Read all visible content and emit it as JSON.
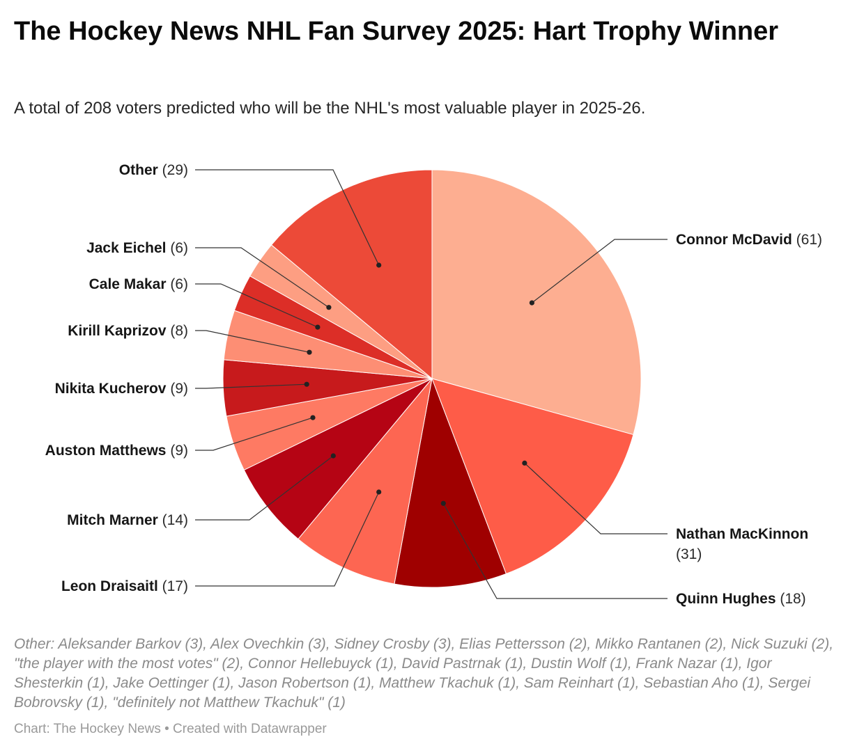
{
  "header": {
    "title": "The Hockey News NHL Fan Survey 2025: Hart Trophy Winner",
    "subtitle": "A total of 208 voters predicted who will be the NHL's most valuable player in 2025-26."
  },
  "chart_data": {
    "type": "pie",
    "title": "The Hockey News NHL Fan Survey 2025: Hart Trophy Winner",
    "total": 208,
    "slices": [
      {
        "name": "Connor McDavid",
        "value": 61,
        "count_label": "(61)",
        "color": "#fdae91"
      },
      {
        "name": "Nathan MacKinnon",
        "value": 31,
        "count_label": "(31)",
        "color": "#fe5c48"
      },
      {
        "name": "Quinn Hughes",
        "value": 18,
        "count_label": "(18)",
        "color": "#9f0000"
      },
      {
        "name": "Leon Draisaitl",
        "value": 17,
        "count_label": "(17)",
        "color": "#fd6652"
      },
      {
        "name": "Mitch Marner",
        "value": 14,
        "count_label": "(14)",
        "color": "#b50414"
      },
      {
        "name": "Auston Matthews",
        "value": 9,
        "count_label": "(9)",
        "color": "#fe7a63"
      },
      {
        "name": "Nikita Kucherov",
        "value": 9,
        "count_label": "(9)",
        "color": "#c71a1c"
      },
      {
        "name": "Kirill Kaprizov",
        "value": 8,
        "count_label": "(8)",
        "color": "#fd8e74"
      },
      {
        "name": "Cale Makar",
        "value": 6,
        "count_label": "(6)",
        "color": "#dc2e27"
      },
      {
        "name": "Jack Eichel",
        "value": 6,
        "count_label": "(6)",
        "color": "#fd9e82"
      },
      {
        "name": "Other",
        "value": 29,
        "count_label": "(29)",
        "color": "#ec4a38"
      }
    ]
  },
  "notes": "Other: Aleksander Barkov (3), Alex Ovechkin (3), Sidney Crosby (3), Elias Pettersson (2), Mikko Rantanen (2), Nick Suzuki (2), \"the player with the most votes\" (2), Connor Hellebuyck (1), David Pastrnak (1), Dustin Wolf (1), Frank Nazar (1), Igor Shesterkin (1), Jake Oettinger (1), Jason Robertson (1), Matthew Tkachuk (1), Sam Reinhart (1), Sebastian Aho (1), Sergei Bobrovsky (1), \"definitely not Matthew Tkachuk\" (1)",
  "footer": "Chart: The Hockey News • Created with Datawrapper"
}
